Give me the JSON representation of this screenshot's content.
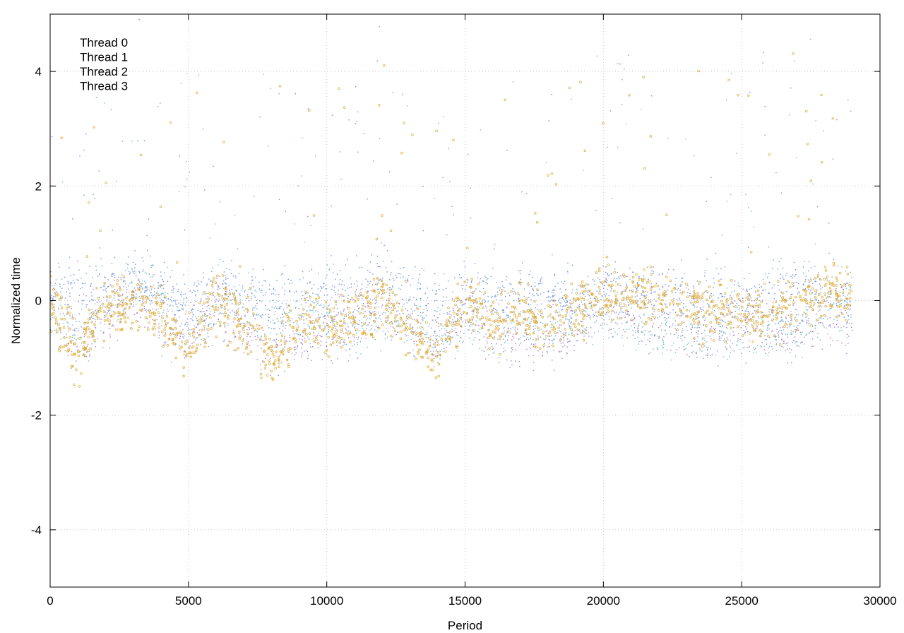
{
  "chart_data": {
    "type": "scatter",
    "title": "",
    "xlabel": "Period",
    "ylabel": "Normalized time",
    "xlim": [
      0,
      30000
    ],
    "ylim": [
      -5,
      5
    ],
    "xticks": [
      0,
      5000,
      10000,
      15000,
      20000,
      25000,
      30000
    ],
    "yticks": [
      -4,
      -2,
      0,
      2,
      4
    ],
    "grid": true,
    "legend_position": "top-left",
    "x_extent": [
      0,
      29000
    ],
    "series": [
      {
        "name": "Thread 0",
        "color": "#9467bd",
        "marker": "dot",
        "anchors": [
          [
            0,
            0.1
          ],
          [
            1000,
            -0.8
          ],
          [
            2000,
            -0.3
          ],
          [
            3000,
            0.1
          ],
          [
            4000,
            -0.4
          ],
          [
            5000,
            -0.7
          ],
          [
            6000,
            -0.2
          ],
          [
            7000,
            -0.5
          ],
          [
            8000,
            -0.8
          ],
          [
            9000,
            -0.7
          ],
          [
            10000,
            -0.6
          ],
          [
            11000,
            -0.3
          ],
          [
            12000,
            -0.2
          ],
          [
            13000,
            -0.5
          ],
          [
            14000,
            -0.7
          ],
          [
            15000,
            -0.3
          ],
          [
            16000,
            -0.6
          ],
          [
            17000,
            -0.7
          ],
          [
            18000,
            -0.8
          ],
          [
            19000,
            -0.5
          ],
          [
            20000,
            -0.1
          ],
          [
            21000,
            -0.3
          ],
          [
            22000,
            -0.4
          ],
          [
            23000,
            -0.6
          ],
          [
            24000,
            -0.5
          ],
          [
            25000,
            -0.4
          ],
          [
            26000,
            -0.5
          ],
          [
            27000,
            -0.6
          ],
          [
            28000,
            -0.4
          ],
          [
            29000,
            -0.3
          ]
        ]
      },
      {
        "name": "Thread 1",
        "color": "#5b7ee0",
        "marker": "dot",
        "anchors": [
          [
            0,
            0.4
          ],
          [
            1000,
            0.1
          ],
          [
            2000,
            0.3
          ],
          [
            3000,
            0.4
          ],
          [
            4000,
            0.2
          ],
          [
            5000,
            -0.1
          ],
          [
            6000,
            0.3
          ],
          [
            7000,
            0.1
          ],
          [
            8000,
            0.0
          ],
          [
            9000,
            0.1
          ],
          [
            10000,
            0.2
          ],
          [
            11000,
            0.2
          ],
          [
            12000,
            0.4
          ],
          [
            13000,
            0.1
          ],
          [
            14000,
            0.0
          ],
          [
            15000,
            0.2
          ],
          [
            16000,
            0.1
          ],
          [
            17000,
            0.1
          ],
          [
            18000,
            0.0
          ],
          [
            19000,
            0.1
          ],
          [
            20000,
            0.2
          ],
          [
            21000,
            0.2
          ],
          [
            22000,
            0.1
          ],
          [
            23000,
            0.1
          ],
          [
            24000,
            0.0
          ],
          [
            25000,
            0.1
          ],
          [
            26000,
            0.1
          ],
          [
            27000,
            0.2
          ],
          [
            28000,
            0.3
          ],
          [
            29000,
            0.2
          ]
        ]
      },
      {
        "name": "Thread 2",
        "color": "#5aafc5",
        "marker": "dot",
        "anchors": [
          [
            0,
            -0.1
          ],
          [
            1000,
            -0.6
          ],
          [
            2000,
            -0.1
          ],
          [
            3000,
            0.2
          ],
          [
            4000,
            0.1
          ],
          [
            5000,
            -0.4
          ],
          [
            6000,
            -0.2
          ],
          [
            7000,
            0.1
          ],
          [
            8000,
            -0.3
          ],
          [
            9000,
            -0.4
          ],
          [
            10000,
            -0.2
          ],
          [
            11000,
            -0.5
          ],
          [
            12000,
            -0.2
          ],
          [
            13000,
            -0.4
          ],
          [
            14000,
            -0.6
          ],
          [
            15000,
            -0.5
          ],
          [
            16000,
            -0.5
          ],
          [
            17000,
            -0.3
          ],
          [
            18000,
            -0.5
          ],
          [
            19000,
            -0.3
          ],
          [
            20000,
            -0.2
          ],
          [
            21000,
            -0.3
          ],
          [
            22000,
            -0.6
          ],
          [
            23000,
            -0.5
          ],
          [
            24000,
            -0.6
          ],
          [
            25000,
            -0.5
          ],
          [
            26000,
            -0.6
          ],
          [
            27000,
            -0.4
          ],
          [
            28000,
            -0.2
          ],
          [
            29000,
            -0.1
          ]
        ]
      },
      {
        "name": "Thread 3",
        "color": "#d9a11f",
        "marker": "ring",
        "anchors": [
          [
            0,
            0.0
          ],
          [
            1000,
            -0.9
          ],
          [
            2000,
            -0.2
          ],
          [
            3000,
            -0.1
          ],
          [
            4000,
            -0.3
          ],
          [
            5000,
            -0.9
          ],
          [
            6000,
            0.0
          ],
          [
            7000,
            -0.5
          ],
          [
            8000,
            -1.0
          ],
          [
            9000,
            -0.3
          ],
          [
            10000,
            -0.4
          ],
          [
            11000,
            -0.3
          ],
          [
            12000,
            0.1
          ],
          [
            13000,
            -0.6
          ],
          [
            14000,
            -0.8
          ],
          [
            15000,
            0.0
          ],
          [
            16000,
            -0.4
          ],
          [
            17000,
            -0.1
          ],
          [
            18000,
            -0.6
          ],
          [
            19000,
            -0.1
          ],
          [
            20000,
            0.1
          ],
          [
            21000,
            0.1
          ],
          [
            22000,
            0.0
          ],
          [
            23000,
            -0.1
          ],
          [
            24000,
            -0.1
          ],
          [
            25000,
            -0.2
          ],
          [
            26000,
            -0.2
          ],
          [
            27000,
            -0.1
          ],
          [
            28000,
            0.2
          ],
          [
            29000,
            0.0
          ]
        ]
      }
    ]
  }
}
